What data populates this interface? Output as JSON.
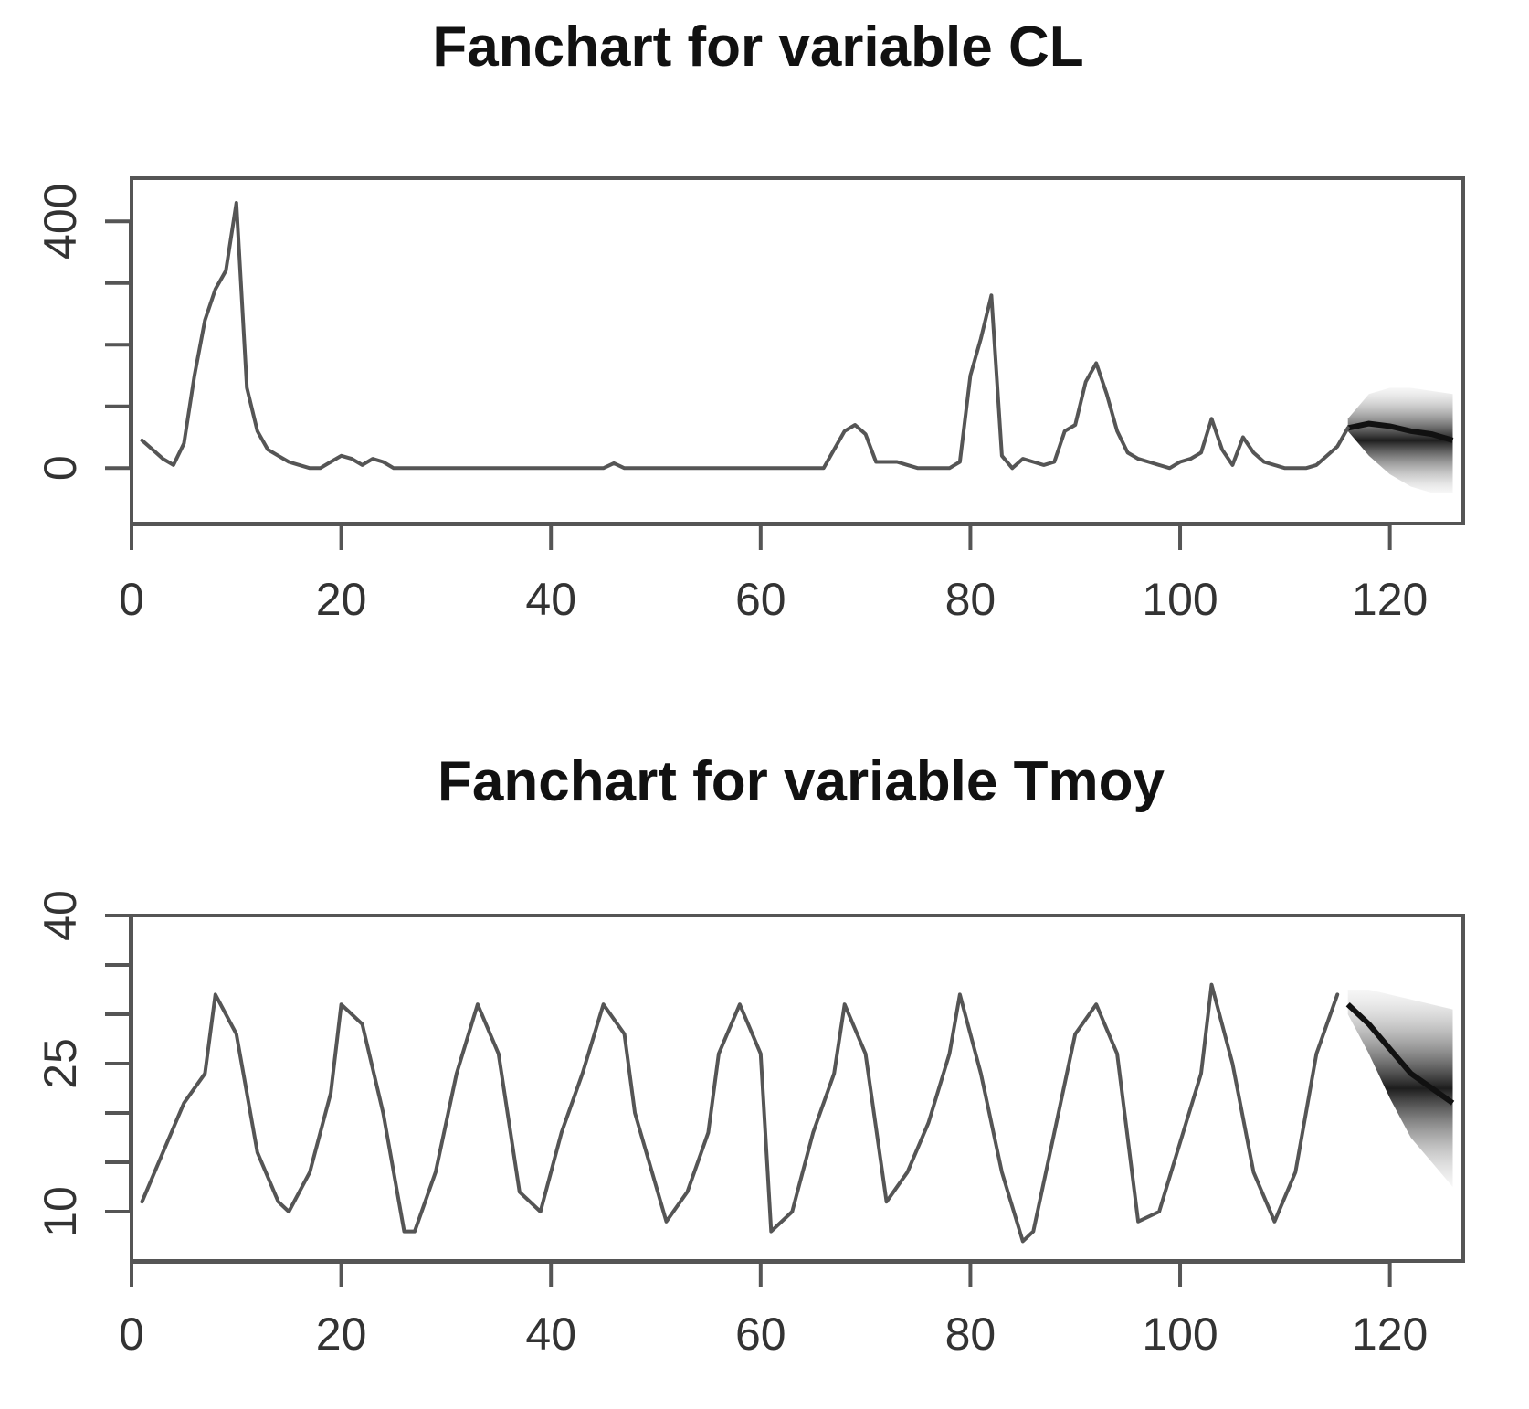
{
  "chart_data": [
    {
      "type": "line",
      "title": "Fanchart for variable  CL",
      "xlabel": "",
      "ylabel": "",
      "xlim": [
        0,
        127
      ],
      "ylim": [
        -90,
        470
      ],
      "x_ticks": [
        0,
        20,
        40,
        60,
        80,
        100,
        120
      ],
      "x_tick_labels": [
        "0",
        "20",
        "40",
        "60",
        "80",
        "100",
        "120"
      ],
      "y_ticks": [
        0,
        100,
        200,
        300,
        400
      ],
      "y_tick_labels": [
        "0",
        "",
        "",
        "",
        "400"
      ],
      "grid": false,
      "series": [
        {
          "x": [
            1,
            2,
            3,
            4,
            5,
            6,
            7,
            8,
            9,
            10,
            11,
            12,
            13,
            14,
            15,
            16,
            17,
            18,
            19,
            20,
            21,
            22,
            23,
            24,
            25,
            30,
            40,
            45,
            46,
            47,
            50,
            60,
            66,
            67,
            68,
            69,
            70,
            71,
            72,
            73,
            74,
            75,
            76,
            77,
            78,
            79,
            80,
            81,
            82,
            83,
            84,
            85,
            86,
            87,
            88,
            89,
            90,
            91,
            92,
            93,
            94,
            95,
            96,
            97,
            98,
            99,
            100,
            101,
            102,
            103,
            104,
            105,
            106,
            107,
            108,
            109,
            110,
            111,
            112,
            113,
            114,
            115,
            116
          ],
          "y": [
            45,
            30,
            15,
            5,
            40,
            150,
            240,
            290,
            320,
            430,
            130,
            60,
            30,
            20,
            10,
            5,
            0,
            0,
            10,
            20,
            15,
            5,
            15,
            10,
            0,
            0,
            0,
            0,
            8,
            0,
            0,
            0,
            0,
            30,
            60,
            70,
            55,
            10,
            10,
            10,
            5,
            0,
            0,
            0,
            0,
            10,
            150,
            210,
            280,
            20,
            0,
            15,
            10,
            5,
            10,
            60,
            70,
            140,
            170,
            120,
            60,
            25,
            15,
            10,
            5,
            0,
            10,
            15,
            25,
            80,
            30,
            5,
            50,
            25,
            10,
            5,
            0,
            0,
            0,
            5,
            20,
            35,
            65
          ]
        }
      ],
      "forecast_fan": {
        "x": [
          116,
          118,
          120,
          122,
          124,
          126
        ],
        "median": [
          65,
          72,
          68,
          60,
          55,
          45
        ],
        "lower": [
          60,
          20,
          -10,
          -30,
          -40,
          -40
        ],
        "upper": [
          80,
          120,
          130,
          130,
          125,
          120
        ]
      }
    },
    {
      "type": "line",
      "title": "Fanchart for variable Tmoy",
      "xlabel": "",
      "ylabel": "",
      "xlim": [
        0,
        127
      ],
      "ylim": [
        5,
        40
      ],
      "x_ticks": [
        0,
        20,
        40,
        60,
        80,
        100,
        120
      ],
      "x_tick_labels": [
        "0",
        "20",
        "40",
        "60",
        "80",
        "100",
        "120"
      ],
      "y_ticks": [
        10,
        15,
        20,
        25,
        30,
        35,
        40
      ],
      "y_tick_labels": [
        "10",
        "",
        "",
        "25",
        "",
        "",
        "40"
      ],
      "grid": false,
      "series": [
        {
          "x": [
            1,
            3,
            5,
            7,
            8,
            10,
            12,
            14,
            15,
            17,
            19,
            20,
            22,
            24,
            26,
            27,
            29,
            31,
            33,
            35,
            37,
            39,
            41,
            43,
            45,
            47,
            48,
            51,
            53,
            55,
            56,
            58,
            60,
            61,
            63,
            65,
            67,
            68,
            70,
            72,
            74,
            76,
            78,
            79,
            81,
            83,
            85,
            86,
            88,
            90,
            92,
            94,
            96,
            98,
            100,
            102,
            103,
            105,
            107,
            109,
            111,
            113,
            115
          ],
          "y": [
            11,
            16,
            21,
            24,
            32,
            28,
            16,
            11,
            10,
            14,
            22,
            31,
            29,
            20,
            8,
            8,
            14,
            24,
            31,
            26,
            12,
            10,
            18,
            24,
            31,
            28,
            20,
            9,
            12,
            18,
            26,
            31,
            26,
            8,
            10,
            18,
            24,
            31,
            26,
            11,
            14,
            19,
            26,
            32,
            24,
            14,
            7,
            8,
            18,
            28,
            31,
            26,
            9,
            10,
            17,
            24,
            33,
            25,
            14,
            9,
            14,
            26,
            32
          ]
        }
      ],
      "forecast_fan": {
        "x": [
          116,
          118,
          120,
          122,
          124,
          126
        ],
        "median": [
          31,
          29,
          26.5,
          24,
          22.5,
          21
        ],
        "lower": [
          30,
          26,
          21.5,
          17.5,
          15,
          12.5
        ],
        "upper": [
          32.5,
          32.5,
          32,
          31.5,
          31,
          30.5
        ]
      }
    }
  ]
}
